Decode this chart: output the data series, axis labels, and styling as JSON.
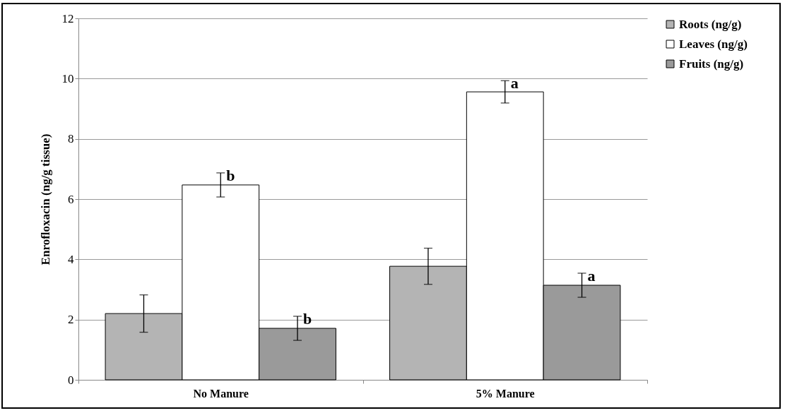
{
  "chart_data": {
    "type": "bar",
    "ylabel": "Enrofloxacin (ng/g tissue)",
    "categories": [
      "No Manure",
      "5% Manure"
    ],
    "series": [
      {
        "name": "Roots (ng/g)",
        "color": "#b4b4b4",
        "values": [
          2.2,
          3.77
        ],
        "errors": [
          0.62,
          0.6
        ]
      },
      {
        "name": "Leaves (ng/g)",
        "color": "#ffffff",
        "values": [
          6.47,
          9.56
        ],
        "errors": [
          0.4,
          0.37
        ],
        "value_labels": [
          "b",
          "a"
        ]
      },
      {
        "name": "Fruits (ng/g)",
        "color": "#9a9a9a",
        "values": [
          1.71,
          3.14
        ],
        "errors": [
          0.4,
          0.4
        ],
        "value_labels": [
          "b",
          "a"
        ]
      }
    ],
    "ylim": [
      0,
      12
    ],
    "yticks": [
      0,
      2,
      4,
      6,
      8,
      10,
      12
    ],
    "grid": "y",
    "legend": "right"
  }
}
